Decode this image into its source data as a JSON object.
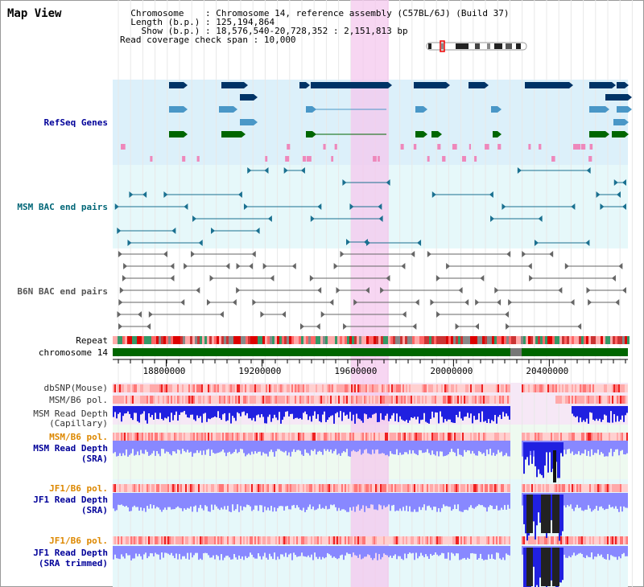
{
  "page": {
    "title": "Map View"
  },
  "info": {
    "chromosome_label": "Chromosome",
    "chromosome_value": ": Chromosome 14, reference assembly (C57BL/6J) (Build 37)",
    "length_label": "Length (b.p.)",
    "length_value": ": 125,194,864",
    "show_label": "Show (b.p.)",
    "show_value": ": 18,576,540-20,728,352 : 2,151,813 bp",
    "coverage_label": "Read coverage check span",
    "coverage_value": ": 10,000"
  },
  "tracks": {
    "refseq": "RefSeq Genes",
    "msm_bac": "MSM BAC end pairs",
    "b6n_bac": "B6N BAC end pairs",
    "repeat": "Repeat",
    "chrom": "chromosome 14",
    "dbsnp": "dbSNP(Mouse)",
    "msm_pol1": "MSM/B6 pol.",
    "msm_cap_1": "MSM Read Depth",
    "msm_cap_2": "(Capillary)",
    "msm_pol2": "MSM/B6 pol.",
    "msm_sra_1": "MSM Read Depth",
    "msm_sra_2": "(SRA)",
    "jf1_pol1": "JF1/B6 pol.",
    "jf1_sra_1": "JF1 Read Depth",
    "jf1_sra_2": "(SRA)",
    "jf1_pol2": "JF1/B6 pol.",
    "jf1_trim_1": "JF1 Read Depth",
    "jf1_trim_2": "(SRA trimmed)"
  },
  "axis": {
    "ticks": [
      "18800000",
      "19200000",
      "19600000",
      "20000000",
      "20400000"
    ],
    "range_bp": [
      18576540,
      20728352
    ]
  },
  "colors": {
    "refseq_dark": "#003366",
    "refseq_mid": "#4a97c7",
    "refseq_green": "#006600",
    "bac_teal": "#1a7090",
    "b6n_gray": "#666666",
    "chrom_green": "#006600",
    "highlight": "#f7dcf2",
    "depth_blue": "#2020e0",
    "depth_light": "#8888ff"
  }
}
